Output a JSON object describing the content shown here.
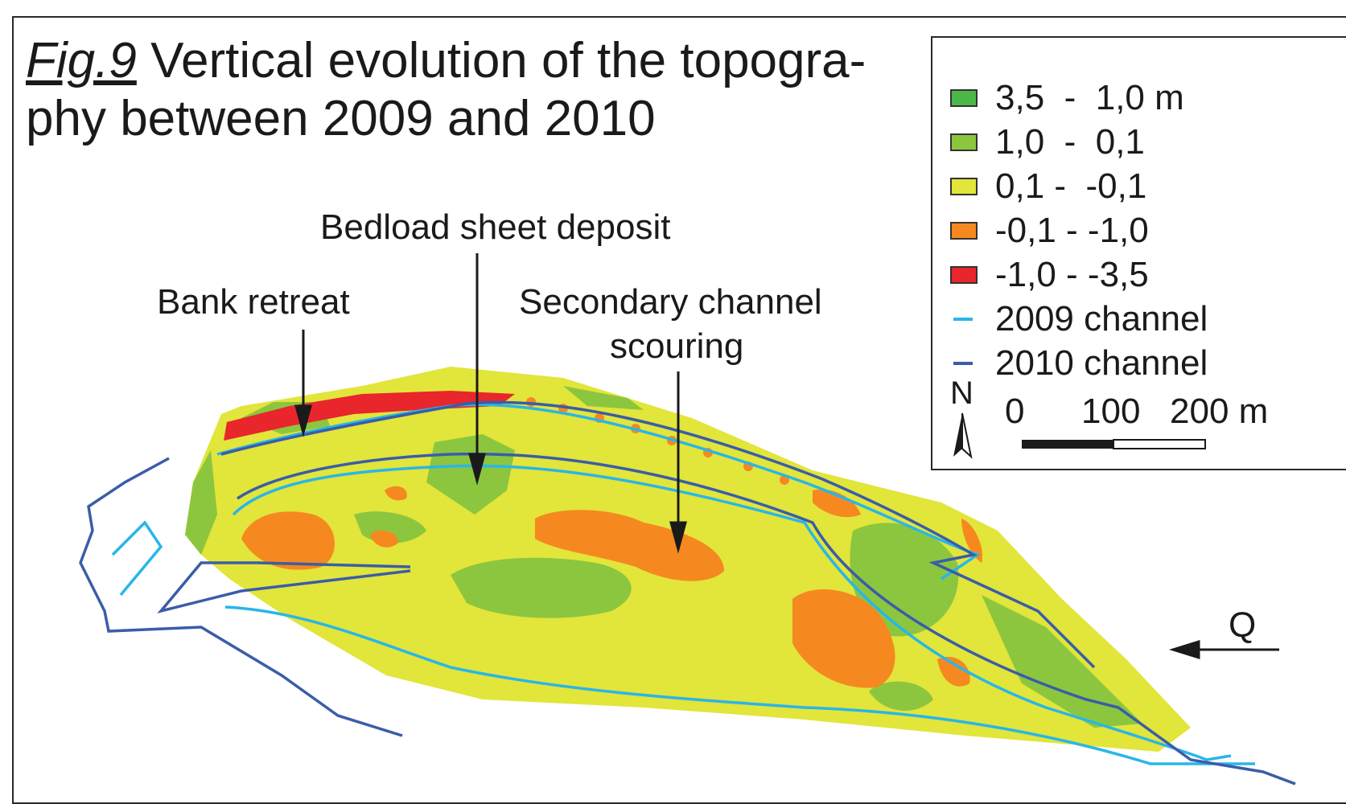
{
  "title": {
    "fig_label": "Fig.9",
    "line1_rest": " Vertical evolution of the topogra-",
    "line2": "phy between 2009 and 2010"
  },
  "annotations": {
    "bank_retreat": "Bank retreat",
    "bedload": "Bedload sheet deposit",
    "secondary_line1": "Secondary channel",
    "secondary_line2": "scouring",
    "flow": "Q"
  },
  "legend": {
    "classes": [
      {
        "label": "3,5  -  1,0 m",
        "color": "#4cb649"
      },
      {
        "label": "1,0  -  0,1",
        "color": "#8cc63f"
      },
      {
        "label": "0,1 -  -0,1",
        "color": "#e2e53a"
      },
      {
        "label": "-0,1 - -1,0",
        "color": "#f5891f"
      },
      {
        "label": "-1,0 - -3,5",
        "color": "#e8262b"
      }
    ],
    "lines": [
      {
        "label": "2009 channel",
        "color": "#29b6e8"
      },
      {
        "label": "2010 channel",
        "color": "#3a5da8"
      }
    ],
    "north": "N",
    "scale": {
      "t0": "0",
      "t1": "100",
      "t2": "200 m"
    }
  }
}
